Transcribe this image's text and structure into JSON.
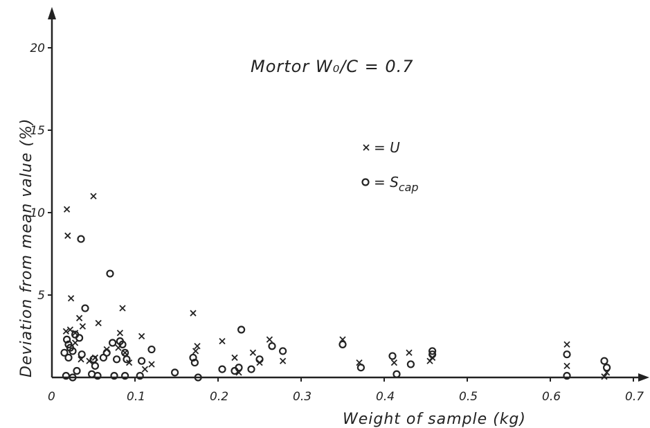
{
  "chart_data": {
    "type": "scatter",
    "title": "Mortor W₀/C = 0.7",
    "xlabel": "Weight of sample (kg)",
    "ylabel": "Deviation from mean value (%)",
    "xlim": [
      0,
      0.72
    ],
    "ylim": [
      0,
      22
    ],
    "x_ticks": [
      0,
      0.1,
      0.2,
      0.3,
      0.4,
      0.5,
      0.6,
      0.7
    ],
    "x_tick_labels": [
      "0",
      "0.1",
      "0.2",
      "0.3",
      "0.4",
      "0.5",
      "0.6",
      "0.7"
    ],
    "y_ticks": [
      5,
      10,
      15,
      20
    ],
    "y_tick_labels": [
      "5",
      "10",
      "15",
      "20"
    ],
    "grid": false,
    "legend_position": "center-right",
    "series": [
      {
        "name": "U",
        "marker": "x",
        "points": [
          [
            0.018,
            10.2
          ],
          [
            0.019,
            8.6
          ],
          [
            0.023,
            4.8
          ],
          [
            0.017,
            2.8
          ],
          [
            0.022,
            2.9
          ],
          [
            0.028,
            2.7
          ],
          [
            0.033,
            3.6
          ],
          [
            0.037,
            3.1
          ],
          [
            0.028,
            2.1
          ],
          [
            0.035,
            1.1
          ],
          [
            0.045,
            1.0
          ],
          [
            0.052,
            1.2
          ],
          [
            0.05,
            11.0
          ],
          [
            0.056,
            3.3
          ],
          [
            0.066,
            1.7
          ],
          [
            0.085,
            4.2
          ],
          [
            0.082,
            2.7
          ],
          [
            0.08,
            1.8
          ],
          [
            0.088,
            1.5
          ],
          [
            0.093,
            0.9
          ],
          [
            0.108,
            2.5
          ],
          [
            0.112,
            0.5
          ],
          [
            0.12,
            0.8
          ],
          [
            0.17,
            3.9
          ],
          [
            0.175,
            1.9
          ],
          [
            0.173,
            1.6
          ],
          [
            0.205,
            2.2
          ],
          [
            0.22,
            1.2
          ],
          [
            0.225,
            0.3
          ],
          [
            0.242,
            1.5
          ],
          [
            0.25,
            0.9
          ],
          [
            0.262,
            2.3
          ],
          [
            0.278,
            1.0
          ],
          [
            0.35,
            2.3
          ],
          [
            0.37,
            0.9
          ],
          [
            0.412,
            0.9
          ],
          [
            0.43,
            1.5
          ],
          [
            0.455,
            1.0
          ],
          [
            0.458,
            1.2
          ],
          [
            0.62,
            2.0
          ],
          [
            0.62,
            0.7
          ],
          [
            0.665,
            0.05
          ],
          [
            0.668,
            0.3
          ]
        ]
      },
      {
        "name": "S",
        "name_sub": "cap",
        "marker": "o",
        "points": [
          [
            0.015,
            1.5
          ],
          [
            0.018,
            2.3
          ],
          [
            0.02,
            2.0
          ],
          [
            0.022,
            1.8
          ],
          [
            0.025,
            1.6
          ],
          [
            0.02,
            1.2
          ],
          [
            0.017,
            0.1
          ],
          [
            0.025,
            0.0
          ],
          [
            0.03,
            0.4
          ],
          [
            0.028,
            2.6
          ],
          [
            0.033,
            2.4
          ],
          [
            0.036,
            1.4
          ],
          [
            0.035,
            8.4
          ],
          [
            0.04,
            4.2
          ],
          [
            0.05,
            1.1
          ],
          [
            0.048,
            0.2
          ],
          [
            0.052,
            0.7
          ],
          [
            0.055,
            0.1
          ],
          [
            0.062,
            1.2
          ],
          [
            0.066,
            1.5
          ],
          [
            0.07,
            6.3
          ],
          [
            0.073,
            2.1
          ],
          [
            0.078,
            1.1
          ],
          [
            0.075,
            0.1
          ],
          [
            0.082,
            2.2
          ],
          [
            0.085,
            2.0
          ],
          [
            0.088,
            1.5
          ],
          [
            0.09,
            1.1
          ],
          [
            0.088,
            0.1
          ],
          [
            0.108,
            1.0
          ],
          [
            0.106,
            0.1
          ],
          [
            0.12,
            1.7
          ],
          [
            0.148,
            0.3
          ],
          [
            0.17,
            1.2
          ],
          [
            0.172,
            0.9
          ],
          [
            0.176,
            0.0
          ],
          [
            0.205,
            0.5
          ],
          [
            0.22,
            0.4
          ],
          [
            0.225,
            0.6
          ],
          [
            0.228,
            2.9
          ],
          [
            0.24,
            0.5
          ],
          [
            0.25,
            1.1
          ],
          [
            0.265,
            1.9
          ],
          [
            0.278,
            1.6
          ],
          [
            0.35,
            2.0
          ],
          [
            0.372,
            0.6
          ],
          [
            0.41,
            1.3
          ],
          [
            0.415,
            0.2
          ],
          [
            0.432,
            0.8
          ],
          [
            0.458,
            1.6
          ],
          [
            0.458,
            1.4
          ],
          [
            0.62,
            1.4
          ],
          [
            0.62,
            0.1
          ],
          [
            0.665,
            1.0
          ],
          [
            0.668,
            0.6
          ]
        ]
      }
    ]
  }
}
